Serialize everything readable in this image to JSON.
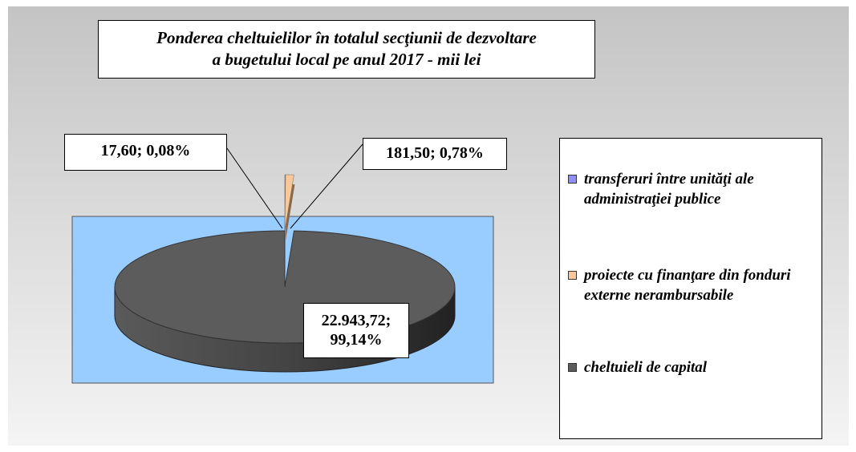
{
  "chart_data": {
    "type": "pie",
    "title": [
      "Ponderea cheltuielilor în totalul  secţiunii de dezvoltare",
      "a bugetului local pe anul 2017 - mii  lei"
    ],
    "categories": [
      "transferuri între unităţi ale administraţiei publice",
      "proiecte cu finanţare din fonduri externe nerambursabile",
      "cheltuieli de capital"
    ],
    "values": [
      17.6,
      181.5,
      22943.72
    ],
    "value_labels": [
      "17,60; 0,08%",
      "181,50; 0,78%",
      "22.943,72; 99,14%"
    ],
    "colors": [
      "#8f8fff",
      "#f8c89a",
      "#5c5c5c"
    ],
    "legend": "right"
  }
}
